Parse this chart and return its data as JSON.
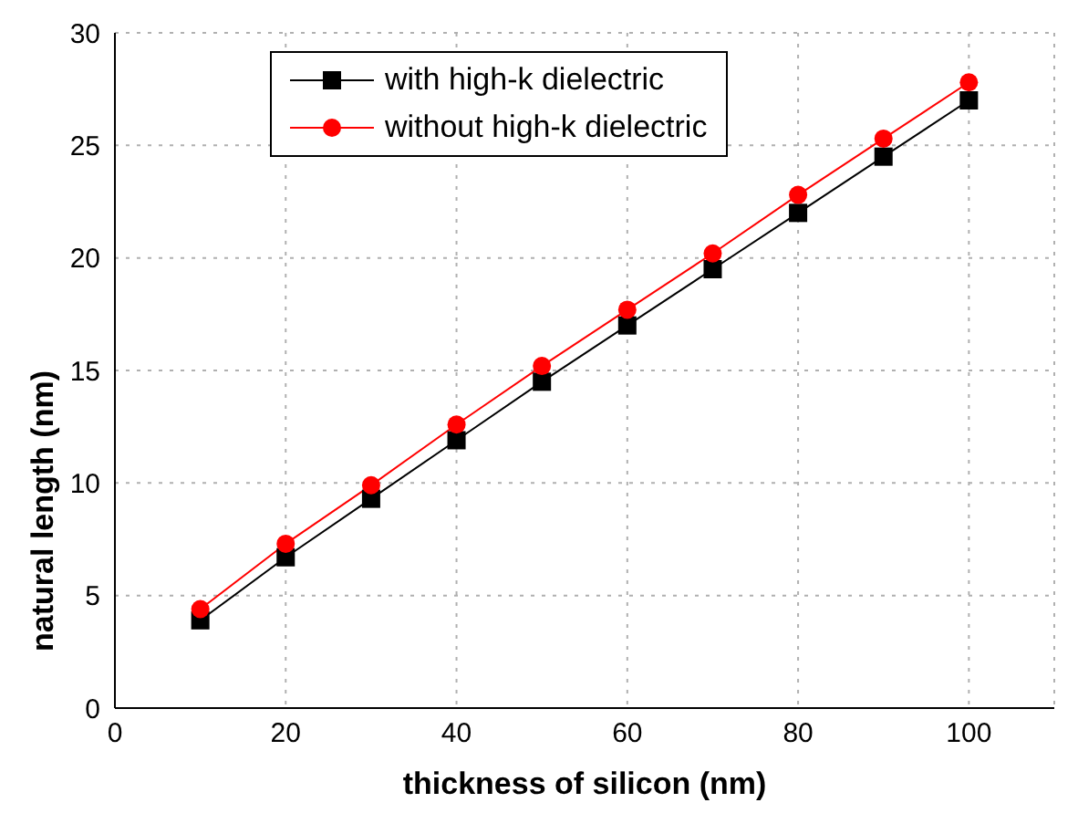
{
  "chart_data": {
    "type": "line",
    "xlabel": "thickness of silicon (nm)",
    "ylabel": "natural length (nm)",
    "x": [
      10,
      20,
      30,
      40,
      50,
      60,
      70,
      80,
      90,
      100
    ],
    "series": [
      {
        "name": "with high-k dielectric",
        "color": "#000000",
        "marker": "square",
        "values": [
          3.9,
          6.7,
          9.3,
          11.9,
          14.5,
          17.0,
          19.5,
          22.0,
          24.5,
          27.0
        ]
      },
      {
        "name": "without high-k dielectric",
        "color": "#ff0000",
        "marker": "circle",
        "values": [
          4.4,
          7.3,
          9.9,
          12.6,
          15.2,
          17.7,
          20.2,
          22.8,
          25.3,
          27.8
        ]
      }
    ],
    "xlim": [
      0,
      110
    ],
    "xticks": [
      0,
      20,
      40,
      60,
      80,
      100
    ],
    "ylim": [
      0,
      30
    ],
    "yticks": [
      0,
      5,
      10,
      15,
      20,
      25,
      30
    ],
    "grid": true,
    "legend": "top left",
    "line_style": "solid"
  }
}
